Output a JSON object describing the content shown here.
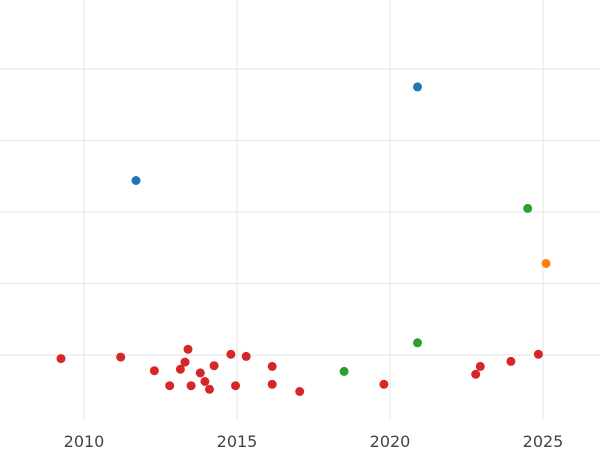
{
  "chart_data": {
    "type": "scatter",
    "title": "",
    "xlabel": "",
    "ylabel": "",
    "xlim": [
      2007.3,
      2026.8
    ],
    "ylim": [
      -2.8,
      44.5
    ],
    "x_ticks": [
      2010,
      2015,
      2020,
      2025
    ],
    "x_tick_labels": [
      "2010",
      "2015",
      "2020",
      "2025"
    ],
    "y_gridlines": [
      0,
      10,
      20,
      30,
      40
    ],
    "y_tick_labels_visible": false,
    "grid": true,
    "legend": "none",
    "series": [
      {
        "color": "#d62728",
        "points": [
          {
            "x": 2009.25,
            "y": -0.5
          },
          {
            "x": 2011.2,
            "y": -0.3
          },
          {
            "x": 2012.3,
            "y": -2.2
          },
          {
            "x": 2012.8,
            "y": -4.3
          },
          {
            "x": 2013.15,
            "y": -2.0
          },
          {
            "x": 2013.3,
            "y": -1.0
          },
          {
            "x": 2013.4,
            "y": 0.8
          },
          {
            "x": 2013.5,
            "y": -4.3
          },
          {
            "x": 2013.8,
            "y": -2.5
          },
          {
            "x": 2013.95,
            "y": -3.7
          },
          {
            "x": 2014.1,
            "y": -4.8
          },
          {
            "x": 2014.25,
            "y": -1.5
          },
          {
            "x": 2014.8,
            "y": 0.1
          },
          {
            "x": 2014.95,
            "y": -4.3
          },
          {
            "x": 2015.3,
            "y": -0.2
          },
          {
            "x": 2016.15,
            "y": -1.6
          },
          {
            "x": 2016.15,
            "y": -4.1
          },
          {
            "x": 2017.05,
            "y": -5.1
          },
          {
            "x": 2019.8,
            "y": -4.1
          },
          {
            "x": 2022.8,
            "y": -2.7
          },
          {
            "x": 2022.95,
            "y": -1.6
          },
          {
            "x": 2023.95,
            "y": -0.9
          },
          {
            "x": 2024.85,
            "y": 0.1
          }
        ]
      },
      {
        "color": "#1f77b4",
        "points": [
          {
            "x": 2011.7,
            "y": 24.4
          },
          {
            "x": 2020.9,
            "y": 37.5
          }
        ]
      },
      {
        "color": "#2ca02c",
        "points": [
          {
            "x": 2018.5,
            "y": -2.3
          },
          {
            "x": 2020.9,
            "y": 1.7
          },
          {
            "x": 2024.5,
            "y": 20.5
          }
        ]
      },
      {
        "color": "#ff7f0e",
        "points": [
          {
            "x": 2025.1,
            "y": 12.8
          }
        ]
      }
    ]
  }
}
